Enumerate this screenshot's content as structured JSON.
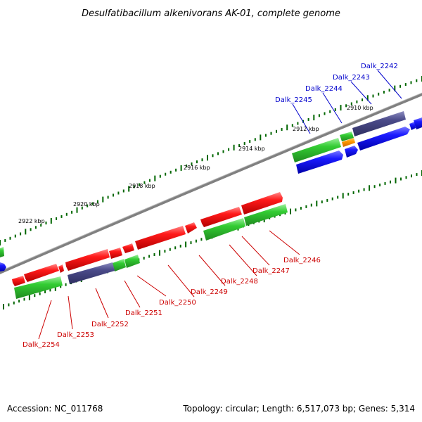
{
  "title": "Desulfatibacillum alkenivorans AK-01, complete genome",
  "footer": {
    "accession": "Accession: NC_011768",
    "topology": "Topology: circular; Length: 6,517,073 bp; Genes: 5,314"
  },
  "colors": {
    "forward_cds": "#ff0000",
    "reverse_cds": "#0000ff",
    "rna_green": "#33cc33",
    "purple": "#4b4b8a",
    "orange": "#ff9900",
    "backbone": "#808080",
    "tick": "#006600",
    "label_top": "#0000cc",
    "label_bottom": "#cc0000"
  },
  "kbp_ticks": [
    "2910 kbp",
    "2912 kbp",
    "2914 kbp",
    "2916 kbp",
    "2918 kbp",
    "2920 kbp",
    "2922 kbp"
  ],
  "gene_labels_top": [
    "Dalk_2242",
    "Dalk_2243",
    "Dalk_2244",
    "Dalk_2245"
  ],
  "gene_labels_bottom": [
    "Dalk_2246",
    "Dalk_2247",
    "Dalk_2248",
    "Dalk_2249",
    "Dalk_2250",
    "Dalk_2251",
    "Dalk_2252",
    "Dalk_2253",
    "Dalk_2254"
  ]
}
